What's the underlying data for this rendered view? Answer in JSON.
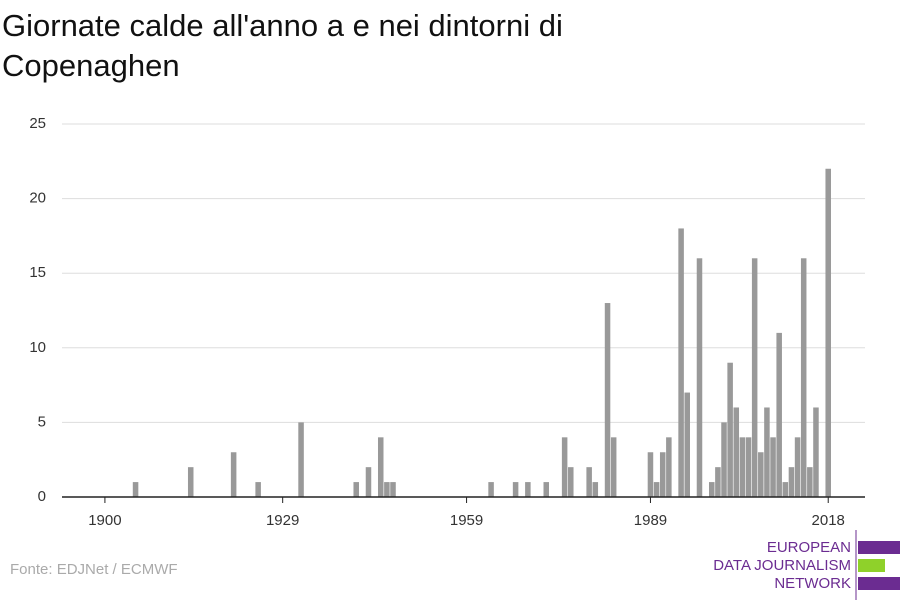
{
  "chart_data": {
    "type": "bar",
    "title": [
      "Giornate calde all'anno a e nei dintorni di",
      "Copenaghen"
    ],
    "x": [
      1905,
      1914,
      1921,
      1925,
      1932,
      1941,
      1943,
      1945,
      1946,
      1947,
      1963,
      1967,
      1969,
      1972,
      1975,
      1976,
      1979,
      1980,
      1982,
      1983,
      1989,
      1990,
      1991,
      1992,
      1994,
      1995,
      1997,
      1999,
      2000,
      2001,
      2002,
      2003,
      2004,
      2005,
      2006,
      2007,
      2008,
      2009,
      2010,
      2011,
      2012,
      2013,
      2014,
      2015,
      2016,
      2018
    ],
    "values": [
      1,
      2,
      3,
      1,
      5,
      1,
      2,
      4,
      1,
      1,
      1,
      1,
      1,
      1,
      4,
      2,
      2,
      1,
      13,
      4,
      3,
      1,
      3,
      4,
      18,
      7,
      16,
      1,
      2,
      5,
      9,
      6,
      4,
      4,
      16,
      3,
      6,
      4,
      11,
      1,
      2,
      4,
      16,
      2,
      6,
      22
    ],
    "color": "#999999",
    "xlim": [
      1893,
      2024
    ],
    "xticks": [
      1900,
      1929,
      1959,
      1989,
      2018
    ],
    "ylim": [
      0,
      25
    ],
    "yticks": [
      0,
      5,
      10,
      15,
      20,
      25
    ],
    "grid": true,
    "source": "Fonte: EDJNet / ECMWF",
    "logo": [
      "EUROPEAN",
      "DATA JOURNALISM",
      "NETWORK"
    ]
  }
}
